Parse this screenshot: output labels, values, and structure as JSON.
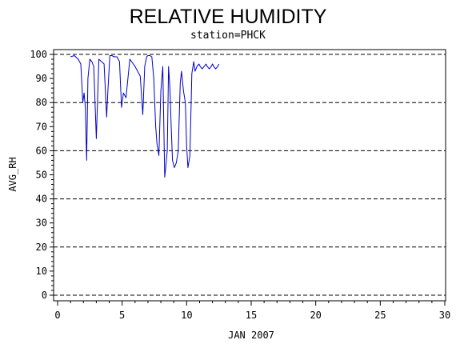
{
  "chart_data": {
    "type": "line",
    "title": "RELATIVE HUMIDITY",
    "subtitle": "station=PHCK",
    "xlabel": "JAN 2007",
    "ylabel": "AVG_RH",
    "xlim": [
      0,
      30
    ],
    "ylim": [
      0,
      100
    ],
    "xticks": [
      "0",
      "5",
      "10",
      "15",
      "20",
      "25",
      "30"
    ],
    "yticks": [
      "0",
      "10",
      "20",
      "30",
      "40",
      "50",
      "60",
      "70",
      "80",
      "90",
      "100"
    ],
    "gridlines_y": [
      0,
      20,
      40,
      60,
      80,
      100
    ],
    "line_color": "#0000cc",
    "series": [
      {
        "x": [
          1.0,
          1.3,
          1.6,
          1.8,
          1.95,
          2.05,
          2.15,
          2.25,
          2.35,
          2.5,
          2.65,
          2.8,
          3.0,
          3.2,
          3.4,
          3.6,
          3.8,
          3.9,
          4.05,
          4.2,
          4.4,
          4.6,
          4.7,
          4.8,
          4.95,
          5.1,
          5.3,
          5.6,
          6.0,
          6.4,
          6.6,
          6.75,
          6.9,
          7.0,
          7.15,
          7.3,
          7.45,
          7.6,
          7.7,
          7.85,
          8.0,
          8.15,
          8.3,
          8.5,
          8.6,
          8.7,
          8.8,
          8.9,
          8.95,
          9.05,
          9.2,
          9.35,
          9.5,
          9.6,
          9.75,
          9.9,
          10.0,
          10.1,
          10.25,
          10.4,
          10.55,
          10.65,
          10.8,
          10.95,
          11.05,
          11.2,
          11.35,
          11.5,
          11.6,
          11.75,
          11.9,
          12.0,
          12.1,
          12.25,
          12.4,
          12.5
        ],
        "y": [
          99,
          99.5,
          98,
          96,
          80,
          84,
          78,
          56,
          90,
          98,
          97,
          95,
          65,
          98,
          97,
          96,
          74,
          85,
          99.5,
          99.5,
          99,
          99,
          98,
          97,
          78,
          84,
          82,
          98,
          95,
          91,
          75,
          95,
          99,
          99.5,
          99.5,
          99,
          90,
          70,
          63,
          58,
          85,
          95,
          49,
          60,
          95,
          86,
          70,
          56,
          55,
          53,
          55,
          60,
          88,
          93,
          85,
          80,
          62,
          53,
          58,
          92,
          97,
          93,
          95,
          96,
          95,
          94,
          95,
          96,
          95,
          94,
          95,
          96,
          95,
          94,
          95,
          96
        ]
      }
    ]
  }
}
